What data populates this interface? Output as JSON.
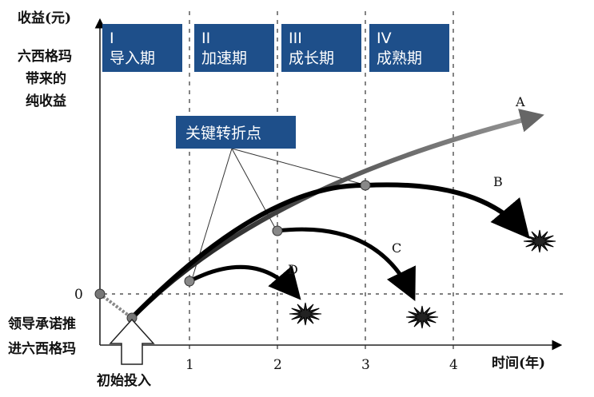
{
  "y_axis": {
    "title": "收益(元)",
    "desc_lines": [
      "六西格玛",
      "带来的",
      "纯收益"
    ],
    "zero": "0",
    "start_lines": [
      "领导承诺推",
      "进六西格玛"
    ]
  },
  "x_axis": {
    "title": "时间(年)",
    "ticks": [
      "1",
      "2",
      "3",
      "4"
    ],
    "start_label": "初始投入"
  },
  "phases": [
    {
      "num": "I",
      "name": "导入期"
    },
    {
      "num": "II",
      "name": "加速期"
    },
    {
      "num": "III",
      "name": "成长期"
    },
    {
      "num": "IV",
      "name": "成熟期"
    }
  ],
  "turning_point_label": "关键转折点",
  "curves": [
    "A",
    "B",
    "C",
    "D"
  ],
  "colors": {
    "box": "#1e4f8a",
    "curve": "#000000",
    "curve_a": "#777777"
  }
}
